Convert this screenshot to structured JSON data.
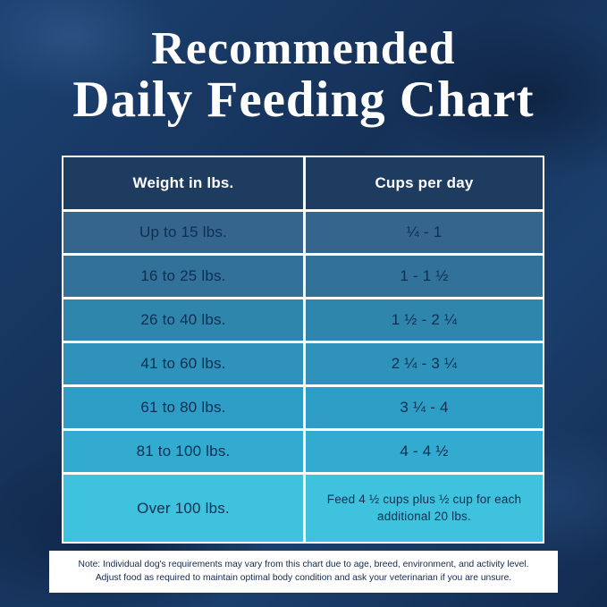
{
  "title": {
    "line1": "Recommended",
    "line2": "Daily Feeding Chart"
  },
  "colors": {
    "background": "#16365f",
    "header_row": "#1d3c60",
    "header_text": "#ffffff",
    "row_text": "#0e2f51",
    "grid_line": "#ffffff",
    "note_background": "#ffffff"
  },
  "table": {
    "headers": [
      "Weight in lbs.",
      "Cups per day"
    ],
    "rows": [
      {
        "weight": "Up to 15 lbs.",
        "cups": "¼ - 1",
        "color": "#35648c"
      },
      {
        "weight": "16 to 25 lbs.",
        "cups": "1 - 1 ½",
        "color": "#32719a"
      },
      {
        "weight": "26 to 40 lbs.",
        "cups": "1 ½ - 2 ¼",
        "color": "#2f86ad"
      },
      {
        "weight": "41 to 60 lbs.",
        "cups": "2 ¼ - 3 ¼",
        "color": "#2e92ba"
      },
      {
        "weight": "61 to 80 lbs.",
        "cups": "3 ¼ - 4",
        "color": "#2f9ec6"
      },
      {
        "weight": "81 to 100 lbs.",
        "cups": "4 - 4 ½",
        "color": "#33aacf"
      },
      {
        "weight": "Over 100 lbs.",
        "cups": "Feed 4 ½ cups plus ½ cup for each additional 20 lbs.",
        "color": "#3fc2de"
      }
    ]
  },
  "note": {
    "line1": "Note: Individual dog's requirements may vary from this chart due to age, breed, environment, and activity level.",
    "line2": "Adjust food as required to maintain optimal body condition and ask your veterinarian if you are unsure."
  },
  "chart_data": {
    "type": "table",
    "title": "Recommended Daily Feeding Chart",
    "columns": [
      "Weight in lbs.",
      "Cups per day"
    ],
    "rows": [
      [
        "Up to 15 lbs.",
        "¼ - 1"
      ],
      [
        "16 to 25 lbs.",
        "1 - 1½"
      ],
      [
        "26 to 40 lbs.",
        "1½ - 2¼"
      ],
      [
        "41 to 60 lbs.",
        "2¼ - 3¼"
      ],
      [
        "61 to 80 lbs.",
        "3¼ - 4"
      ],
      [
        "81 to 100 lbs.",
        "4 - 4½"
      ],
      [
        "Over 100 lbs.",
        "Feed 4½ cups plus ½ cup for each additional 20 lbs."
      ]
    ],
    "footnote": "Note: Individual dog's requirements may vary from this chart due to age, breed, environment, and activity level. Adjust food as required to maintain optimal body condition and ask your veterinarian if you are unsure."
  }
}
